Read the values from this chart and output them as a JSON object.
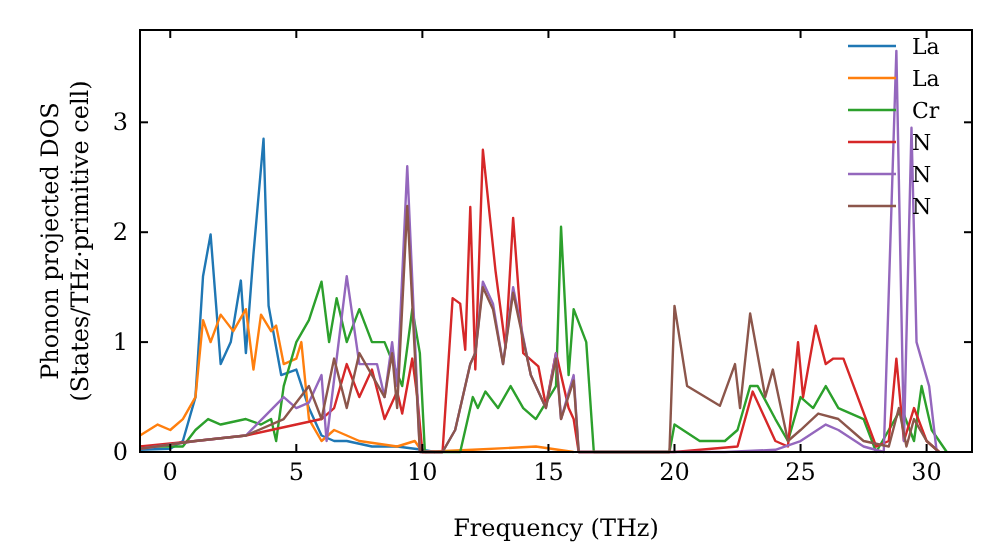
{
  "chart_data": {
    "type": "line",
    "xlabel": "Frequency (THz)",
    "ylabel": "Phonon projected DOS\n(States/THz·primitive cell)",
    "xlim": [
      -1.2,
      31.8
    ],
    "ylim": [
      0,
      3.84
    ],
    "xticks": [
      0,
      5,
      10,
      15,
      20,
      25,
      30
    ],
    "yticks": [
      0,
      1,
      2,
      3
    ],
    "legend": "top right",
    "grid": false,
    "series": [
      {
        "name": "La",
        "color": "#1f77b4",
        "x": [
          -1.2,
          0,
          0.5,
          1,
          1.3,
          1.6,
          2,
          2.4,
          2.8,
          3,
          3.3,
          3.7,
          3.9,
          4.4,
          5,
          5.5,
          6,
          6.5,
          7,
          8,
          9,
          10,
          10.5
        ],
        "values": [
          0.02,
          0.03,
          0.1,
          0.5,
          1.6,
          1.98,
          0.8,
          1.0,
          1.56,
          0.9,
          1.8,
          2.85,
          1.33,
          0.7,
          0.75,
          0.4,
          0.15,
          0.1,
          0.1,
          0.05,
          0.05,
          0.02,
          0
        ]
      },
      {
        "name": "La",
        "color": "#ff7f0e",
        "x": [
          -1.2,
          -0.5,
          0,
          0.5,
          1,
          1.3,
          1.6,
          2,
          2.5,
          3,
          3.3,
          3.6,
          4,
          4.2,
          4.5,
          5,
          5.2,
          5.5,
          6,
          6.5,
          7.5,
          9,
          9.7,
          10,
          12,
          14.5,
          16
        ],
        "values": [
          0.15,
          0.25,
          0.2,
          0.3,
          0.5,
          1.2,
          1.0,
          1.25,
          1.1,
          1.3,
          0.75,
          1.25,
          1.1,
          1.15,
          0.8,
          0.85,
          1.0,
          0.3,
          0.1,
          0.2,
          0.1,
          0.05,
          0.1,
          0,
          0.02,
          0.05,
          0
        ]
      },
      {
        "name": "Cr",
        "color": "#2ca02c",
        "x": [
          -1.2,
          0.5,
          1,
          1.5,
          2,
          3,
          3.6,
          4,
          4.2,
          4.5,
          5,
          5.5,
          6,
          6.3,
          6.6,
          7,
          7.5,
          8,
          8.5,
          9.2,
          9.6,
          9.9,
          10.1,
          11.5,
          12,
          12.2,
          12.5,
          13,
          13.5,
          14,
          14.5,
          15.3,
          15.5,
          15.8,
          16,
          16.5,
          16.8,
          19.8,
          20,
          21,
          22,
          22.5,
          23,
          23.3,
          24,
          24.5,
          25,
          25.5,
          26,
          26.5,
          27.5,
          28,
          29,
          29.5,
          29.8,
          30.2,
          30.8
        ],
        "values": [
          0.05,
          0.05,
          0.2,
          0.3,
          0.25,
          0.3,
          0.25,
          0.3,
          0.1,
          0.6,
          1.0,
          1.2,
          1.55,
          1.0,
          1.4,
          1.0,
          1.3,
          1.0,
          1.0,
          0.6,
          1.3,
          0.9,
          0,
          0,
          0.5,
          0.4,
          0.55,
          0.4,
          0.6,
          0.4,
          0.3,
          0.6,
          2.05,
          0.7,
          1.3,
          1.0,
          0,
          0,
          0.25,
          0.1,
          0.1,
          0.2,
          0.6,
          0.6,
          0.3,
          0.1,
          0.5,
          0.4,
          0.6,
          0.4,
          0.3,
          0,
          0.4,
          0.1,
          0.6,
          0.2,
          0
        ]
      },
      {
        "name": "N",
        "color": "#d62728",
        "x": [
          -1.2,
          1,
          3,
          4,
          5,
          6,
          6.5,
          7,
          7.5,
          8,
          8.5,
          9,
          9.2,
          9.6,
          9.8,
          10,
          10.8,
          11.2,
          11.5,
          11.7,
          11.9,
          12.1,
          12.4,
          12.9,
          13.3,
          13.6,
          14,
          14.6,
          14.9,
          15.3,
          15.8,
          16,
          16.2,
          20,
          22.5,
          23.1,
          23.5,
          24,
          24.5,
          24.9,
          25.1,
          25.6,
          26,
          26.3,
          26.7,
          28,
          28.5,
          28.8,
          29.1,
          29.5,
          30,
          30.5
        ],
        "values": [
          0.05,
          0.1,
          0.15,
          0.2,
          0.25,
          0.3,
          0.4,
          0.8,
          0.5,
          0.75,
          0.3,
          0.55,
          0.35,
          0.85,
          0.5,
          0,
          0,
          1.4,
          1.35,
          0.93,
          2.23,
          0.75,
          2.75,
          1.65,
          0.95,
          2.13,
          0.9,
          0.78,
          0.42,
          0.9,
          0.4,
          0.3,
          0,
          0,
          0.05,
          0.55,
          0.35,
          0.1,
          0.05,
          1.0,
          0.5,
          1.15,
          0.8,
          0.85,
          0.85,
          0.05,
          0.1,
          0.85,
          0.1,
          0.4,
          0.1,
          0
        ]
      },
      {
        "name": "N",
        "color": "#9467bd",
        "x": [
          -1.2,
          1,
          3,
          4.5,
          5,
          5.5,
          6,
          6.2,
          7,
          7.5,
          8.2,
          8.5,
          8.8,
          9,
          9.4,
          9.9,
          10.8,
          11.3,
          11.6,
          11.9,
          12.1,
          12.4,
          12.8,
          13.2,
          13.6,
          14.3,
          14.9,
          15.3,
          15.5,
          16,
          16.2,
          22,
          24,
          25,
          26,
          26.5,
          27.5,
          28.3,
          28.8,
          29.1,
          29.4,
          29.6,
          30.1,
          30.4
        ],
        "values": [
          0.03,
          0.1,
          0.15,
          0.5,
          0.4,
          0.45,
          0.7,
          0.1,
          1.6,
          0.8,
          0.8,
          0.5,
          1.0,
          0.6,
          2.6,
          0,
          0,
          0.2,
          0.5,
          0.8,
          0.9,
          1.55,
          1.35,
          0.8,
          1.5,
          0.7,
          0.4,
          0.9,
          0.3,
          0.7,
          0,
          0,
          0.02,
          0.1,
          0.25,
          0.2,
          0.05,
          0,
          3.65,
          0.1,
          2.95,
          1.0,
          0.6,
          0
        ]
      },
      {
        "name": "N",
        "color": "#8c564b",
        "x": [
          -1.2,
          1,
          3,
          4.5,
          5.5,
          6,
          6.5,
          7,
          7.5,
          8,
          8.5,
          8.8,
          9,
          9.4,
          9.9,
          10.8,
          11.3,
          11.6,
          11.9,
          12.1,
          12.4,
          12.8,
          13.2,
          13.6,
          14.3,
          14.9,
          15.3,
          15.5,
          16,
          16.2,
          19.8,
          20,
          20.5,
          21.8,
          22.4,
          22.6,
          23,
          23.6,
          23.9,
          24.5,
          25,
          25.7,
          26.5,
          27.5,
          28.5,
          28.9,
          29.2,
          29.5,
          30,
          30.5
        ],
        "values": [
          0.03,
          0.1,
          0.15,
          0.3,
          0.6,
          0.3,
          0.85,
          0.4,
          0.9,
          0.7,
          0.5,
          0.9,
          0.4,
          2.24,
          0,
          0,
          0.2,
          0.5,
          0.8,
          0.9,
          1.5,
          1.3,
          0.8,
          1.45,
          0.7,
          0.4,
          0.85,
          0.3,
          0.65,
          0,
          0,
          1.33,
          0.6,
          0.42,
          0.8,
          0.4,
          1.26,
          0.5,
          0.75,
          0.1,
          0.2,
          0.35,
          0.3,
          0.1,
          0.05,
          0.4,
          0.05,
          0.3,
          0.1,
          0
        ]
      }
    ]
  }
}
